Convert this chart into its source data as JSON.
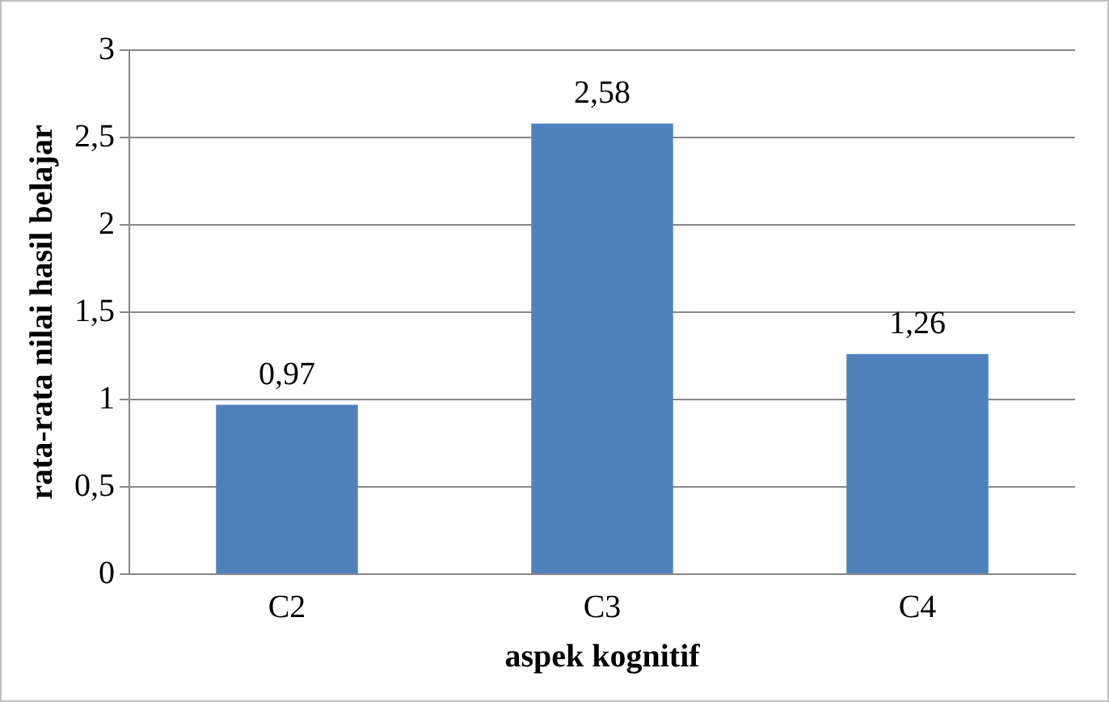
{
  "chart_data": {
    "type": "bar",
    "xlabel": "aspek kognitif",
    "ylabel": "rata-rata nilai hasil belajar",
    "categories": [
      "C2",
      "C3",
      "C4"
    ],
    "values": [
      0.97,
      2.58,
      1.26
    ],
    "value_labels": [
      "0,97",
      "2,58",
      "1,26"
    ],
    "color": "#4f81bd",
    "ylim": [
      0,
      3
    ],
    "yticks": [
      0,
      {
        "value": 0.5,
        "label": "0,5"
      },
      1,
      {
        "value": 1.5,
        "label": "1,5"
      },
      2,
      {
        "value": 2.5,
        "label": "2,5"
      },
      3
    ],
    "grid": "y",
    "legend": false
  }
}
